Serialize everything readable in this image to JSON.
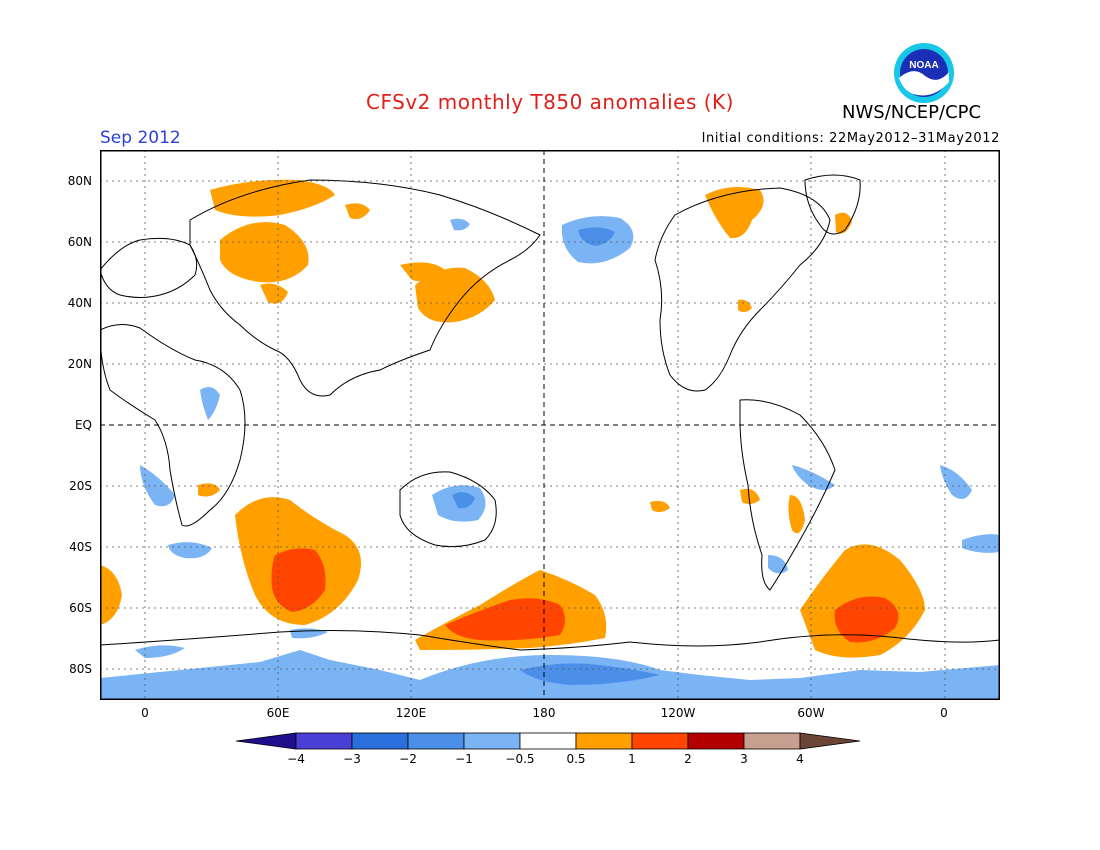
{
  "header": {
    "title": "CFSv2 monthly T850 anomalies (K)",
    "agency": "NWS/NCEP/CPC",
    "valid_month": "Sep 2012",
    "initial_conditions": "Initial conditions: 22May2012–31May2012",
    "logo_text": "NOAA"
  },
  "map": {
    "projection": "equirectangular, centered on 180",
    "lat_labels": [
      "80N",
      "60N",
      "40N",
      "20N",
      "EQ",
      "20S",
      "40S",
      "60S",
      "80S"
    ],
    "lon_labels": [
      "0",
      "60E",
      "120E",
      "180",
      "120W",
      "60W",
      "0"
    ]
  },
  "colorbar": {
    "labels": [
      "−4",
      "−3",
      "−2",
      "−1",
      "−0.5",
      "0.5",
      "1",
      "2",
      "3",
      "4"
    ],
    "colors": [
      "#1f0f8c",
      "#4a3fd4",
      "#2a6fdb",
      "#4b8fe8",
      "#7ab4f5",
      "#ffffff",
      "#ffa000",
      "#ff4500",
      "#b30000",
      "#c8a090",
      "#6b4535"
    ]
  },
  "legend_colors": {
    "neg_light": "#7ab4f5",
    "neg_mid": "#4b8fe8",
    "pos_light": "#ffa000",
    "pos_mid": "#ff4500"
  }
}
